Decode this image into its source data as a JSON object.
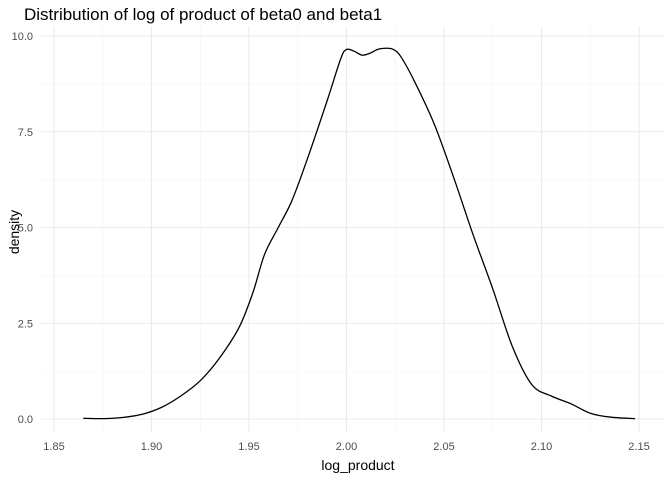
{
  "chart_data": {
    "type": "line",
    "title": "Distribution of log of product of beta0 and beta1",
    "xlabel": "log_product",
    "ylabel": "density",
    "xlim": [
      1.85,
      2.15
    ],
    "ylim": [
      0,
      10
    ],
    "x_ticks": [
      "1.85",
      "1.90",
      "1.95",
      "2.00",
      "2.05",
      "2.10",
      "2.15"
    ],
    "y_ticks": [
      "0.0",
      "2.5",
      "5.0",
      "7.5",
      "10.0"
    ],
    "grid": true,
    "legend": "none",
    "series": [
      {
        "color": "#000000",
        "x": [
          1.865,
          1.875,
          1.885,
          1.895,
          1.905,
          1.915,
          1.925,
          1.935,
          1.945,
          1.952,
          1.958,
          1.965,
          1.972,
          1.98,
          1.99,
          1.997,
          2.0,
          2.004,
          2.008,
          2.012,
          2.016,
          2.02,
          2.024,
          2.028,
          2.035,
          2.045,
          2.055,
          2.065,
          2.075,
          2.085,
          2.095,
          2.105,
          2.115,
          2.125,
          2.135,
          2.148
        ],
        "y": [
          0.02,
          0.01,
          0.04,
          0.12,
          0.3,
          0.6,
          1.0,
          1.6,
          2.4,
          3.3,
          4.3,
          5.0,
          5.7,
          6.8,
          8.3,
          9.4,
          9.65,
          9.6,
          9.5,
          9.55,
          9.65,
          9.68,
          9.65,
          9.45,
          8.8,
          7.7,
          6.3,
          4.8,
          3.4,
          1.9,
          0.9,
          0.6,
          0.4,
          0.15,
          0.05,
          0.01
        ]
      }
    ]
  }
}
